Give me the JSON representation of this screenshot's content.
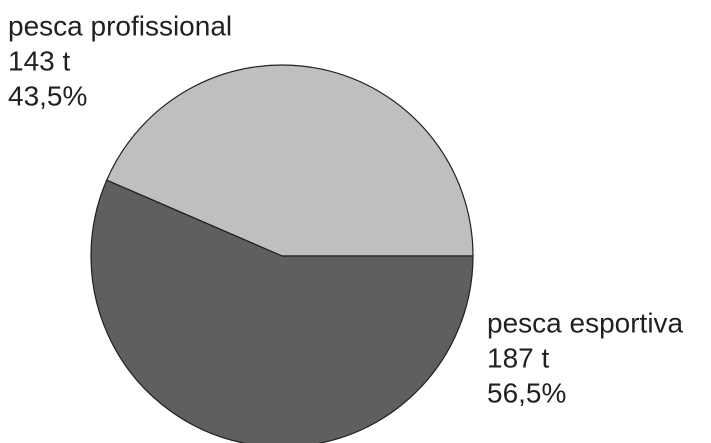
{
  "chart_data": {
    "type": "pie",
    "categories": [
      "pesca profissional",
      "pesca esportiva"
    ],
    "values": [
      43.5,
      56.5
    ],
    "value_labels": [
      "43,5%",
      "56,5%"
    ],
    "amounts": [
      143,
      187
    ],
    "amount_labels": [
      "143 t",
      "187 t"
    ],
    "colors": [
      "#bfbfc0",
      "#5f5f61"
    ]
  }
}
